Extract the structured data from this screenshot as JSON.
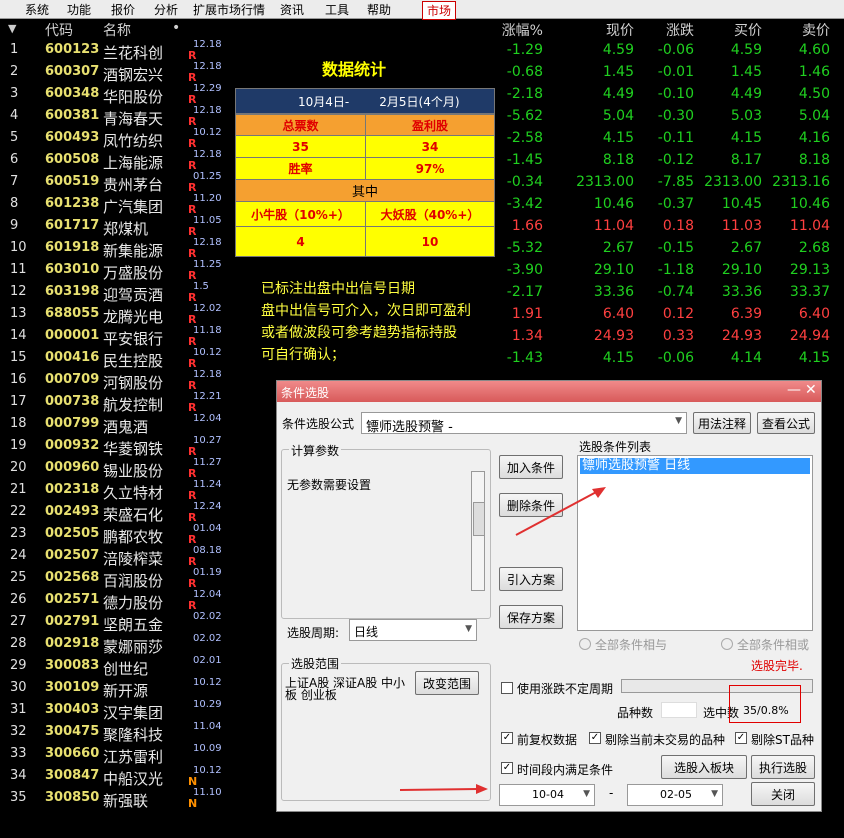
{
  "menu": [
    "系统",
    "功能",
    "报价",
    "分析",
    "扩展市场行情",
    "资讯",
    "工具",
    "帮助",
    "市场"
  ],
  "table": {
    "headers": [
      "代码",
      "名称",
      "•",
      "涨幅%",
      "现价",
      "涨跌",
      "买价",
      "卖价"
    ],
    "rows": [
      {
        "index": 1,
        "code": "600123",
        "name": "兰花科创",
        "date": "12.18",
        "flag": "R"
      },
      {
        "index": 2,
        "code": "600307",
        "name": "酒钢宏兴",
        "date": "12.18",
        "flag": "R"
      },
      {
        "index": 3,
        "code": "600348",
        "name": "华阳股份",
        "date": "12.29",
        "flag": "R"
      },
      {
        "index": 4,
        "code": "600381",
        "name": "青海春天",
        "date": "12.18",
        "flag": "R"
      },
      {
        "index": 5,
        "code": "600493",
        "name": "凤竹纺织",
        "date": "10.12",
        "flag": "R"
      },
      {
        "index": 6,
        "code": "600508",
        "name": "上海能源",
        "date": "12.18",
        "flag": "R"
      },
      {
        "index": 7,
        "code": "600519",
        "name": "贵州茅台",
        "date": "01.25",
        "flag": "R"
      },
      {
        "index": 8,
        "code": "601238",
        "name": "广汽集团",
        "date": "11.20",
        "flag": "R"
      },
      {
        "index": 9,
        "code": "601717",
        "name": "郑煤机",
        "date": "11.05",
        "flag": "R"
      },
      {
        "index": 10,
        "code": "601918",
        "name": "新集能源",
        "date": "12.18",
        "flag": "R"
      },
      {
        "index": 11,
        "code": "603010",
        "name": "万盛股份",
        "date": "11.25",
        "flag": "R"
      },
      {
        "index": 12,
        "code": "603198",
        "name": "迎驾贡酒",
        "date": "1.5",
        "flag": "R"
      },
      {
        "index": 13,
        "code": "688055",
        "name": "龙腾光电",
        "date": "12.02",
        "flag": "R"
      },
      {
        "index": 14,
        "code": "000001",
        "name": "平安银行",
        "date": "11.18",
        "flag": "R"
      },
      {
        "index": 15,
        "code": "000416",
        "name": "民生控股",
        "date": "10.12",
        "flag": "R"
      },
      {
        "index": 16,
        "code": "000709",
        "name": "河钢股份",
        "date": "12.18",
        "flag": "R"
      },
      {
        "index": 17,
        "code": "000738",
        "name": "航发控制",
        "date": "12.21",
        "flag": "R"
      },
      {
        "index": 18,
        "code": "000799",
        "name": "酒鬼酒",
        "date": "12.04",
        "flag": null
      },
      {
        "index": 19,
        "code": "000932",
        "name": "华菱钢铁",
        "date": "10.27",
        "flag": "R"
      },
      {
        "index": 20,
        "code": "000960",
        "name": "锡业股份",
        "date": "11.27",
        "flag": "R"
      },
      {
        "index": 21,
        "code": "002318",
        "name": "久立特材",
        "date": "11.24",
        "flag": "R"
      },
      {
        "index": 22,
        "code": "002493",
        "name": "荣盛石化",
        "date": "12.24",
        "flag": "R"
      },
      {
        "index": 23,
        "code": "002505",
        "name": "鹏都农牧",
        "date": "01.04",
        "flag": "R"
      },
      {
        "index": 24,
        "code": "002507",
        "name": "涪陵榨菜",
        "date": "08.18",
        "flag": "R"
      },
      {
        "index": 25,
        "code": "002568",
        "name": "百润股份",
        "date": "01.19",
        "flag": "R"
      },
      {
        "index": 26,
        "code": "002571",
        "name": "德力股份",
        "date": "12.04",
        "flag": "R"
      },
      {
        "index": 27,
        "code": "002791",
        "name": "坚朗五金",
        "date": "02.02",
        "flag": null
      },
      {
        "index": 28,
        "code": "002918",
        "name": "蒙娜丽莎",
        "date": "02.02",
        "flag": null
      },
      {
        "index": 29,
        "code": "300083",
        "name": "创世纪",
        "date": "02.01",
        "flag": null
      },
      {
        "index": 30,
        "code": "300109",
        "name": "新开源",
        "date": "10.12",
        "flag": null
      },
      {
        "index": 31,
        "code": "300403",
        "name": "汉宇集团",
        "date": "10.29",
        "flag": null
      },
      {
        "index": 32,
        "code": "300475",
        "name": "聚隆科技",
        "date": "11.04",
        "flag": null
      },
      {
        "index": 33,
        "code": "300660",
        "name": "江苏雷利",
        "date": "10.09",
        "flag": null
      },
      {
        "index": 34,
        "code": "300847",
        "name": "中船汉光",
        "date": "10.12",
        "flag": "N"
      },
      {
        "index": 35,
        "code": "300850",
        "name": "新强联",
        "date": "11.10",
        "flag": "N"
      }
    ],
    "quotes": [
      [
        "-1.29",
        "4.59",
        "-0.06",
        "4.59",
        "4.60"
      ],
      [
        "-0.68",
        "1.45",
        "-0.01",
        "1.45",
        "1.46"
      ],
      [
        "-2.18",
        "4.49",
        "-0.10",
        "4.49",
        "4.50"
      ],
      [
        "-5.62",
        "5.04",
        "-0.30",
        "5.03",
        "5.04"
      ],
      [
        "-2.58",
        "4.15",
        "-0.11",
        "4.15",
        "4.16"
      ],
      [
        "-1.45",
        "8.18",
        "-0.12",
        "8.17",
        "8.18"
      ],
      [
        "-0.34",
        "2313.00",
        "-7.85",
        "2313.00",
        "2313.16"
      ],
      [
        "-3.42",
        "10.46",
        "-0.37",
        "10.45",
        "10.46"
      ],
      [
        "1.66",
        "11.04",
        "0.18",
        "11.03",
        "11.04"
      ],
      [
        "-5.32",
        "2.67",
        "-0.15",
        "2.67",
        "2.68"
      ],
      [
        "-3.90",
        "29.10",
        "-1.18",
        "29.10",
        "29.13"
      ],
      [
        "-2.17",
        "33.36",
        "-0.74",
        "33.36",
        "33.37"
      ],
      [
        "1.91",
        "6.40",
        "0.12",
        "6.39",
        "6.40"
      ],
      [
        "1.34",
        "24.93",
        "0.33",
        "24.93",
        "24.94"
      ],
      [
        "-1.43",
        "4.15",
        "-0.06",
        "4.14",
        "4.15"
      ]
    ]
  },
  "stats": {
    "title": "数据统计",
    "period_start": "10月4日-",
    "period_end": "2月5日(4个月)",
    "total_label": "总票数",
    "profit_label": "盈利股",
    "total": "35",
    "profit": "34",
    "winrate_label": "胜率",
    "winrate": "97%",
    "among": "其中",
    "small_label": "小牛股（10%+）",
    "big_label": "大妖股（40%+）",
    "small": "4",
    "big": "10"
  },
  "notes": [
    "已标注出盘中出信号日期",
    "盘中出信号可介入，次日即可盈利",
    "或者做波段可参考趋势指标持股",
    "可自行确认；"
  ],
  "dialog": {
    "title": "条件选股",
    "formula_label": "条件选股公式",
    "formula": "镖师选股预警 -",
    "usage_btn": "用法注释",
    "view_btn": "查看公式",
    "params_title": "计算参数",
    "params_text": "无参数需要设置",
    "add_btn": "加入条件",
    "del_btn": "删除条件",
    "import_btn": "引入方案",
    "save_btn": "保存方案",
    "list_title": "选股条件列表",
    "list_item": "镖师选股预警  日线",
    "period_label": "选股周期:",
    "period": "日线",
    "and_label": "全部条件相与",
    "or_label": "全部条件相或",
    "done": "选股完毕.",
    "range_title": "选股范围",
    "range_text": "上证A股 深证A股 中小板 创业板",
    "range_btn": "改变范围",
    "variable_period": "使用涨跌不定周期",
    "count_label": "品种数",
    "selected_label": "选中数",
    "selected": "35/0.8%",
    "adjusted": "前复权数据",
    "exclude_untraded": "剔除当前未交易的品种",
    "exclude_st": "剔除ST品种",
    "in_period": "时间段内满足条件",
    "to_block_btn": "选股入板块",
    "run_btn": "执行选股",
    "date_from": "10-04",
    "dash": "-",
    "date_to": "02-05",
    "close_btn": "关闭"
  }
}
